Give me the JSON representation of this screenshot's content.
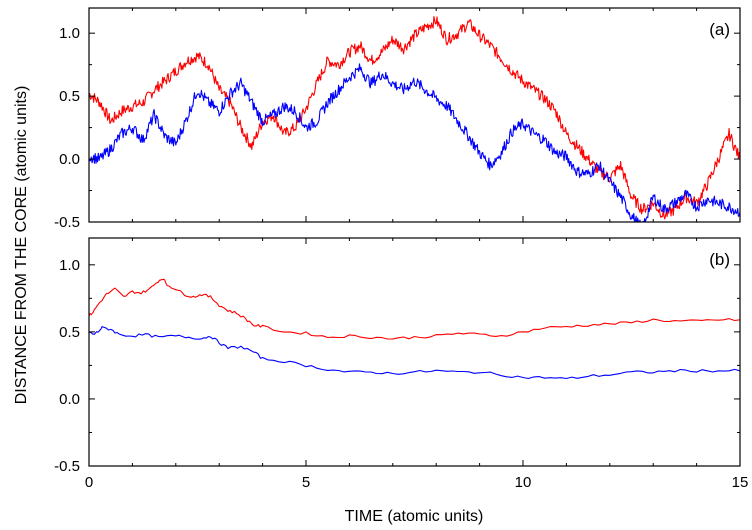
{
  "chart_data": [
    {
      "panel": "(a)",
      "type": "line",
      "xlim": [
        0,
        15
      ],
      "ylim": [
        -0.5,
        1.2
      ],
      "xticks": [
        0,
        5,
        10,
        15
      ],
      "yticks": [
        "-0.5",
        "0.0",
        "0.5",
        "1.0"
      ],
      "colors": [
        "#ff0000",
        "#0000ff"
      ],
      "series": [
        {
          "color": "#ff0000",
          "x": [
            0,
            0.25,
            0.5,
            0.75,
            1,
            1.25,
            1.5,
            1.75,
            2,
            2.25,
            2.5,
            2.75,
            3,
            3.25,
            3.5,
            3.75,
            4,
            4.25,
            4.5,
            4.75,
            5,
            5.25,
            5.5,
            5.75,
            6,
            6.25,
            6.5,
            6.75,
            7,
            7.25,
            7.5,
            7.75,
            8,
            8.25,
            8.5,
            8.75,
            9,
            9.25,
            9.5,
            9.75,
            10,
            10.25,
            10.5,
            10.75,
            11,
            11.25,
            11.5,
            11.75,
            12,
            12.25,
            12.5,
            12.75,
            13,
            13.25,
            13.5,
            13.75,
            14,
            14.25,
            14.5,
            14.75,
            15
          ],
          "y": [
            0.52,
            0.45,
            0.3,
            0.38,
            0.42,
            0.45,
            0.55,
            0.62,
            0.7,
            0.78,
            0.82,
            0.75,
            0.55,
            0.45,
            0.25,
            0.1,
            0.3,
            0.35,
            0.2,
            0.25,
            0.4,
            0.6,
            0.78,
            0.75,
            0.85,
            0.9,
            0.78,
            0.85,
            0.95,
            0.88,
            0.98,
            1.05,
            1.1,
            0.95,
            1.0,
            1.08,
            0.98,
            0.9,
            0.8,
            0.7,
            0.62,
            0.55,
            0.48,
            0.38,
            0.2,
            0.1,
            0.0,
            -0.1,
            -0.15,
            -0.05,
            -0.3,
            -0.4,
            -0.35,
            -0.45,
            -0.4,
            -0.3,
            -0.35,
            -0.2,
            0.0,
            0.2,
            0.0
          ]
        },
        {
          "color": "#0000ff",
          "x": [
            0,
            0.25,
            0.5,
            0.75,
            1,
            1.25,
            1.5,
            1.75,
            2,
            2.25,
            2.5,
            2.75,
            3,
            3.25,
            3.5,
            3.75,
            4,
            4.25,
            4.5,
            4.75,
            5,
            5.25,
            5.5,
            5.75,
            6,
            6.25,
            6.5,
            6.75,
            7,
            7.25,
            7.5,
            7.75,
            8,
            8.25,
            8.5,
            8.75,
            9,
            9.25,
            9.5,
            9.75,
            10,
            10.25,
            10.5,
            10.75,
            11,
            11.25,
            11.5,
            11.75,
            12,
            12.25,
            12.5,
            12.75,
            13,
            13.25,
            13.5,
            13.75,
            14,
            14.25,
            14.5,
            14.75,
            15
          ],
          "y": [
            0.02,
            0.0,
            0.08,
            0.2,
            0.25,
            0.15,
            0.35,
            0.18,
            0.12,
            0.32,
            0.55,
            0.45,
            0.38,
            0.52,
            0.6,
            0.45,
            0.3,
            0.35,
            0.42,
            0.38,
            0.25,
            0.3,
            0.45,
            0.55,
            0.65,
            0.72,
            0.6,
            0.68,
            0.6,
            0.55,
            0.62,
            0.55,
            0.48,
            0.42,
            0.3,
            0.18,
            0.05,
            -0.05,
            0.05,
            0.22,
            0.28,
            0.2,
            0.15,
            0.05,
            0.02,
            -0.1,
            -0.12,
            -0.05,
            -0.18,
            -0.3,
            -0.45,
            -0.55,
            -0.3,
            -0.4,
            -0.35,
            -0.28,
            -0.38,
            -0.32,
            -0.35,
            -0.38,
            -0.42
          ]
        }
      ]
    },
    {
      "panel": "(b)",
      "type": "line",
      "xlim": [
        0,
        15
      ],
      "ylim": [
        -0.5,
        1.2
      ],
      "xticks": [
        0,
        5,
        10,
        15
      ],
      "yticks": [
        "-0.5",
        "0.0",
        "0.5",
        "1.0"
      ],
      "colors": [
        "#ff0000",
        "#0000ff"
      ],
      "series": [
        {
          "color": "#ff0000",
          "x": [
            0,
            0.1,
            0.2,
            0.4,
            0.6,
            0.8,
            1.0,
            1.2,
            1.4,
            1.6,
            1.7,
            1.8,
            2.0,
            2.2,
            2.4,
            2.6,
            2.8,
            3.0,
            3.2,
            3.4,
            3.6,
            3.8,
            4.0,
            4.5,
            5.0,
            5.5,
            6.0,
            6.5,
            7.0,
            7.5,
            8.0,
            8.5,
            9.0,
            9.5,
            10.0,
            10.5,
            11.0,
            11.5,
            12.0,
            12.5,
            13.0,
            13.5,
            14.0,
            14.5,
            15.0
          ],
          "y": [
            0.62,
            0.65,
            0.7,
            0.78,
            0.82,
            0.76,
            0.8,
            0.79,
            0.82,
            0.88,
            0.9,
            0.85,
            0.82,
            0.78,
            0.76,
            0.78,
            0.76,
            0.7,
            0.66,
            0.64,
            0.6,
            0.55,
            0.54,
            0.5,
            0.49,
            0.46,
            0.47,
            0.46,
            0.45,
            0.46,
            0.47,
            0.49,
            0.48,
            0.47,
            0.5,
            0.53,
            0.54,
            0.55,
            0.56,
            0.57,
            0.59,
            0.58,
            0.58,
            0.59,
            0.59
          ]
        },
        {
          "color": "#0000ff",
          "x": [
            0,
            0.1,
            0.2,
            0.3,
            0.5,
            0.7,
            1.0,
            1.3,
            1.6,
            2.0,
            2.3,
            2.6,
            2.8,
            3.0,
            3.2,
            3.5,
            3.8,
            4.0,
            4.5,
            5.0,
            5.5,
            6.0,
            6.5,
            7.0,
            7.5,
            8.0,
            8.5,
            9.0,
            9.5,
            10.0,
            10.5,
            11.0,
            11.5,
            12.0,
            12.5,
            13.0,
            13.5,
            14.0,
            14.5,
            15.0
          ],
          "y": [
            0.5,
            0.48,
            0.5,
            0.53,
            0.52,
            0.48,
            0.47,
            0.48,
            0.46,
            0.47,
            0.46,
            0.45,
            0.47,
            0.42,
            0.38,
            0.39,
            0.35,
            0.3,
            0.28,
            0.25,
            0.22,
            0.2,
            0.2,
            0.19,
            0.2,
            0.21,
            0.2,
            0.2,
            0.18,
            0.16,
            0.16,
            0.15,
            0.17,
            0.18,
            0.2,
            0.2,
            0.21,
            0.21,
            0.21,
            0.21
          ]
        }
      ]
    }
  ],
  "axes": {
    "xlabel": "TIME (atomic units)",
    "ylabel": "DISTANCE FROM THE CORE (atomic units)"
  }
}
